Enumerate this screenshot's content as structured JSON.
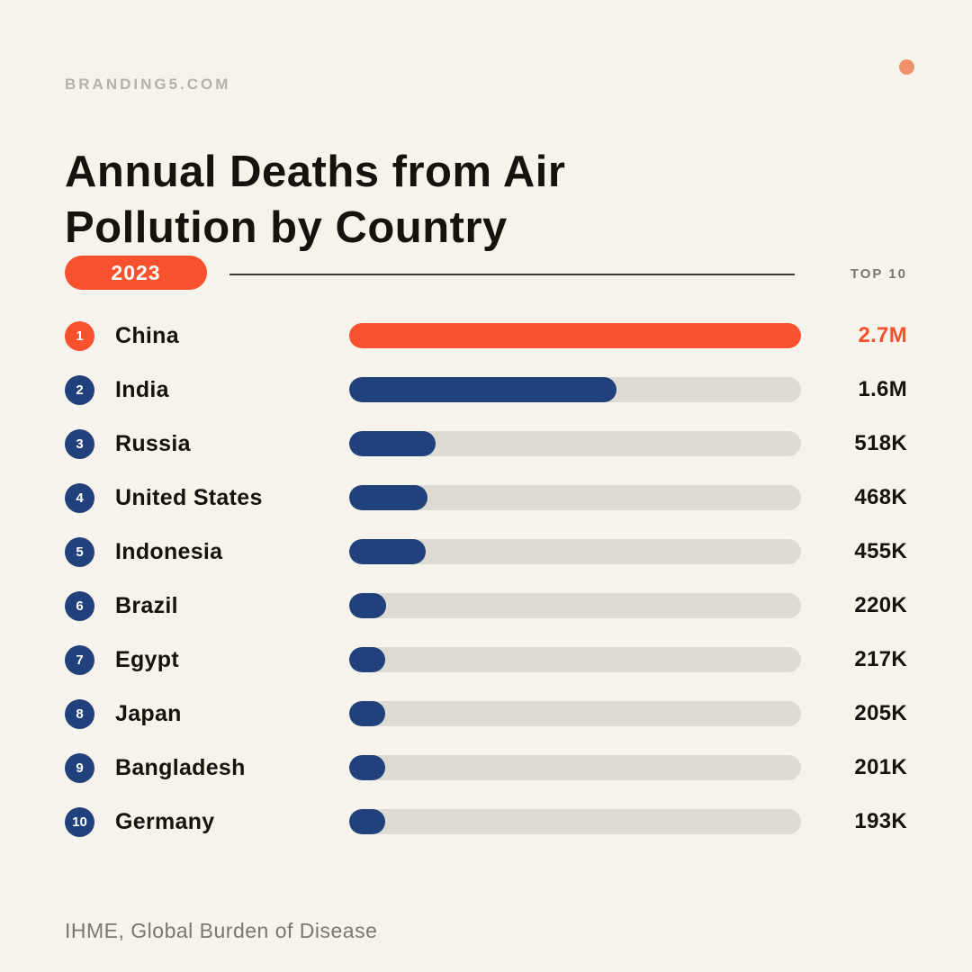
{
  "page": {
    "brand": "BRANDING5.COM",
    "title_line1": "Annual Deaths from Air",
    "title_line2": "Pollution by Country",
    "year_badge": "2023",
    "top_label": "TOP 10",
    "source": "IHME, Global Burden of Disease"
  },
  "colors": {
    "background": "#f6f2ec",
    "accent_orange": "#f8512d",
    "corner_dot_salmon": "#f0906c",
    "navy": "#21417c",
    "bar_track": "#dedbd3",
    "title_text": "#16130e",
    "muted_gray": "#7c766e",
    "brand_gray": "#b6b0a8"
  },
  "chart_data": {
    "type": "bar",
    "title": "Annual Deaths from Air Pollution by Country",
    "year": "2023",
    "subtitle_badge": "TOP 10",
    "source": "IHME, Global Burden of Disease",
    "orientation": "horizontal",
    "max_value": 2700000,
    "categories": [
      "China",
      "India",
      "Russia",
      "United States",
      "Indonesia",
      "Brazil",
      "Egypt",
      "Japan",
      "Bangladesh",
      "Germany"
    ],
    "values": [
      2700000,
      1600000,
      518000,
      468000,
      455000,
      220000,
      217000,
      205000,
      201000,
      193000
    ],
    "rows": [
      {
        "rank": "1",
        "country": "China",
        "value": 2700000,
        "label": "2.7M",
        "highlight": true
      },
      {
        "rank": "2",
        "country": "India",
        "value": 1600000,
        "label": "1.6M",
        "highlight": false
      },
      {
        "rank": "3",
        "country": "Russia",
        "value": 518000,
        "label": "518K",
        "highlight": false
      },
      {
        "rank": "4",
        "country": "United States",
        "value": 468000,
        "label": "468K",
        "highlight": false
      },
      {
        "rank": "5",
        "country": "Indonesia",
        "value": 455000,
        "label": "455K",
        "highlight": false
      },
      {
        "rank": "6",
        "country": "Brazil",
        "value": 220000,
        "label": "220K",
        "highlight": false
      },
      {
        "rank": "7",
        "country": "Egypt",
        "value": 217000,
        "label": "217K",
        "highlight": false
      },
      {
        "rank": "8",
        "country": "Japan",
        "value": 205000,
        "label": "205K",
        "highlight": false
      },
      {
        "rank": "9",
        "country": "Bangladesh",
        "value": 201000,
        "label": "201K",
        "highlight": false
      },
      {
        "rank": "10",
        "country": "Germany",
        "value": 193000,
        "label": "193K",
        "highlight": false
      }
    ]
  }
}
